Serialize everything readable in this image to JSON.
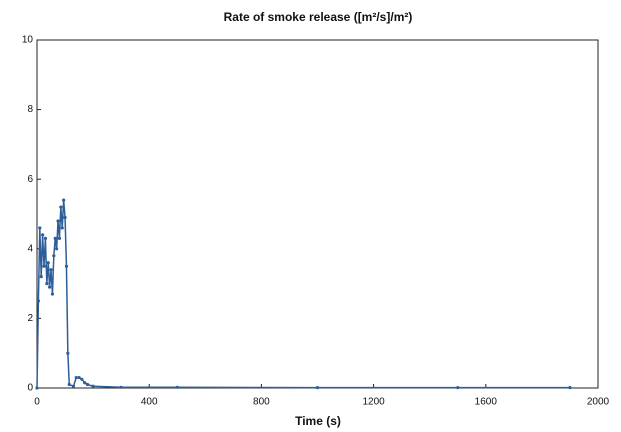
{
  "chart_data": {
    "type": "line",
    "title": "Rate of smoke release ([m²/s]/m²)",
    "x_label": "Time (s)",
    "x": [
      0,
      5,
      10,
      15,
      20,
      25,
      30,
      35,
      40,
      45,
      50,
      55,
      60,
      65,
      70,
      75,
      80,
      85,
      90,
      95,
      100,
      105,
      110,
      115,
      130,
      140,
      150,
      160,
      170,
      180,
      200,
      300,
      500,
      1000,
      1500,
      1900
    ],
    "values": [
      0,
      2.5,
      4.6,
      3.2,
      4.4,
      3.5,
      4.3,
      3.0,
      3.6,
      2.9,
      3.4,
      2.7,
      3.8,
      4.3,
      4.0,
      4.8,
      4.3,
      5.2,
      4.6,
      5.4,
      4.9,
      3.5,
      1.0,
      0.1,
      0.05,
      0.3,
      0.3,
      0.25,
      0.15,
      0.1,
      0.05,
      0.02,
      0.02,
      0.01,
      0.01,
      0.01
    ],
    "color": "#2e5e9a",
    "xlim": [
      0,
      2000
    ],
    "xticks": [
      0,
      400,
      800,
      1200,
      1600,
      2000
    ],
    "ylim": [
      0,
      10
    ],
    "yticks": [
      0,
      2,
      4,
      6,
      8,
      10
    ]
  }
}
